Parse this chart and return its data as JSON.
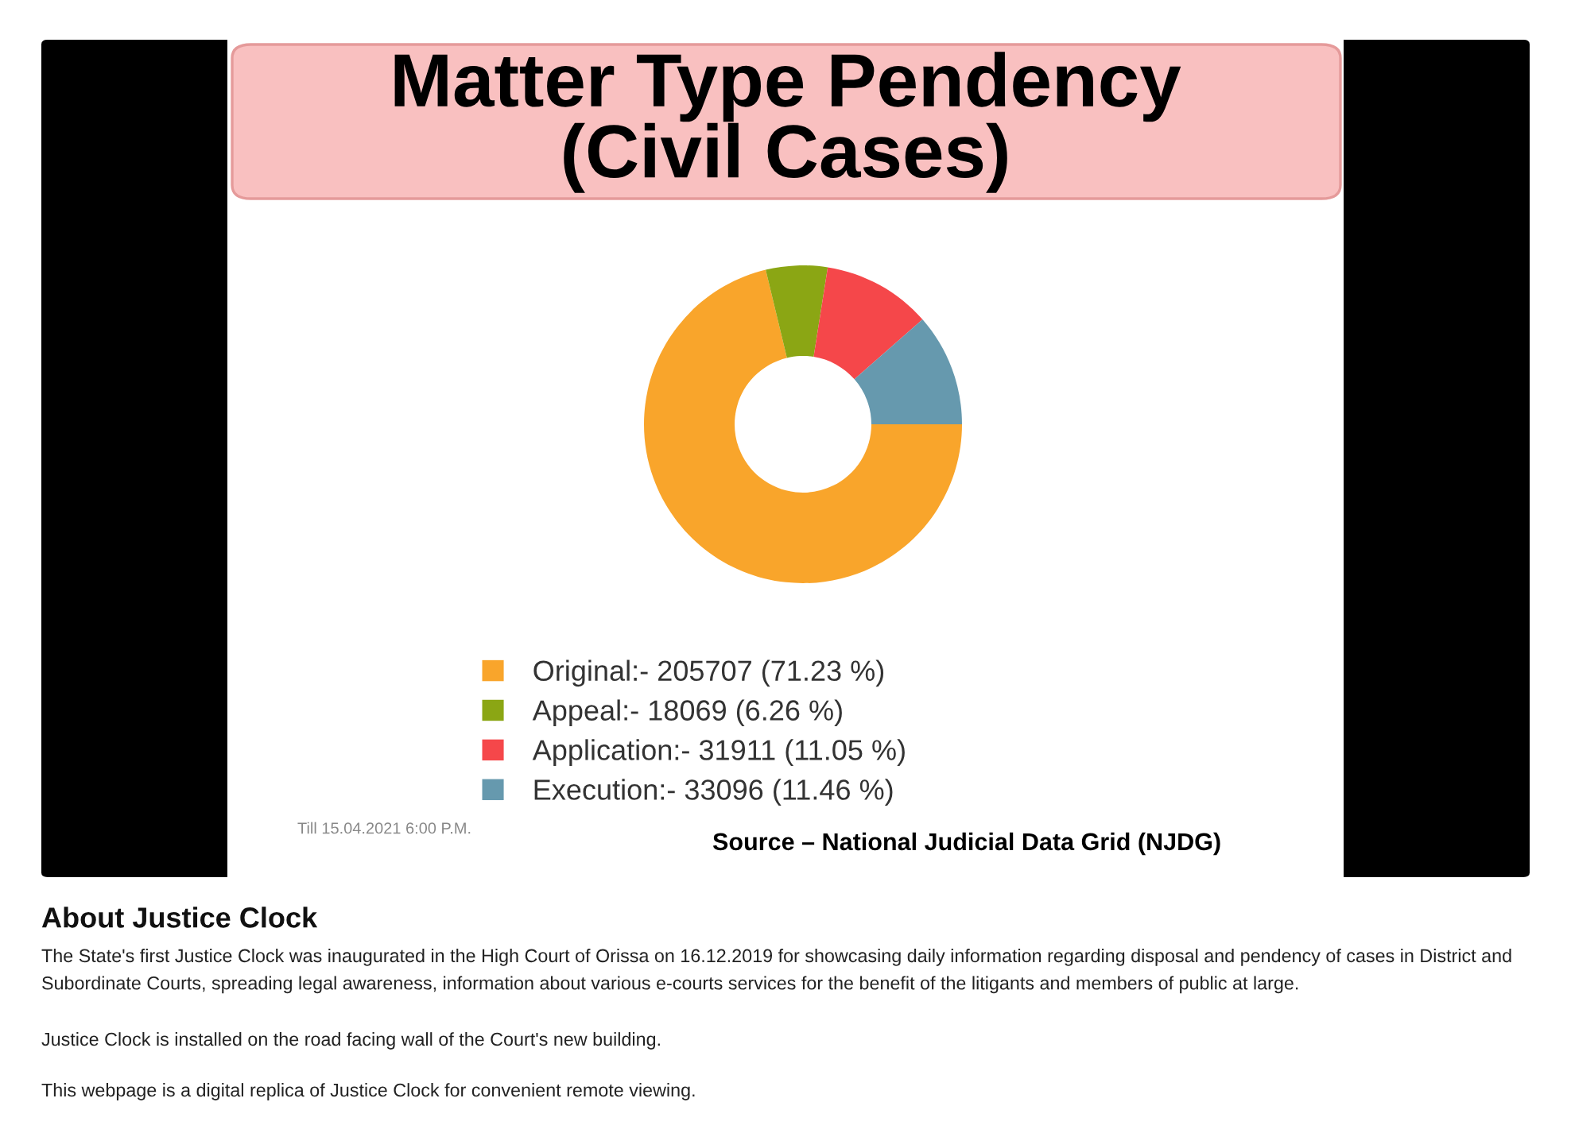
{
  "chart_data": {
    "type": "donut",
    "title": "Matter Type Pendency\n(Civil Cases)",
    "categories": [
      "Original:- 205707 (71.23 %)",
      "Appeal:- 18069 (6.26 %)",
      "Application:- 31911 (11.05 %)",
      "Execution:- 33096 (11.46 %)"
    ],
    "values": [
      71.23,
      6.26,
      11.05,
      11.46
    ],
    "colors": [
      "#f9a52b",
      "#8ba614",
      "#f5474a",
      "#6699ae"
    ],
    "legend": "bottom",
    "annotations": [
      "Till 15.04.2021 6:00 P.M.",
      "Source – National Judicial Data Grid (NJDG)",
      "About Justice Clock",
      "The State's first Justice Clock was inaugurated in the High Court of Orissa on 16.12.2019 for showcasing daily information regarding disposal and pendency of cases in District and Subordinate Courts, spreading legal awareness, information about various e-courts services for the benefit of the litigants and members of public at large.",
      "Justice Clock is installed on the road facing wall of the Court's new building.",
      "This webpage is a digital replica of Justice Clock for convenient remote viewing."
    ]
  }
}
